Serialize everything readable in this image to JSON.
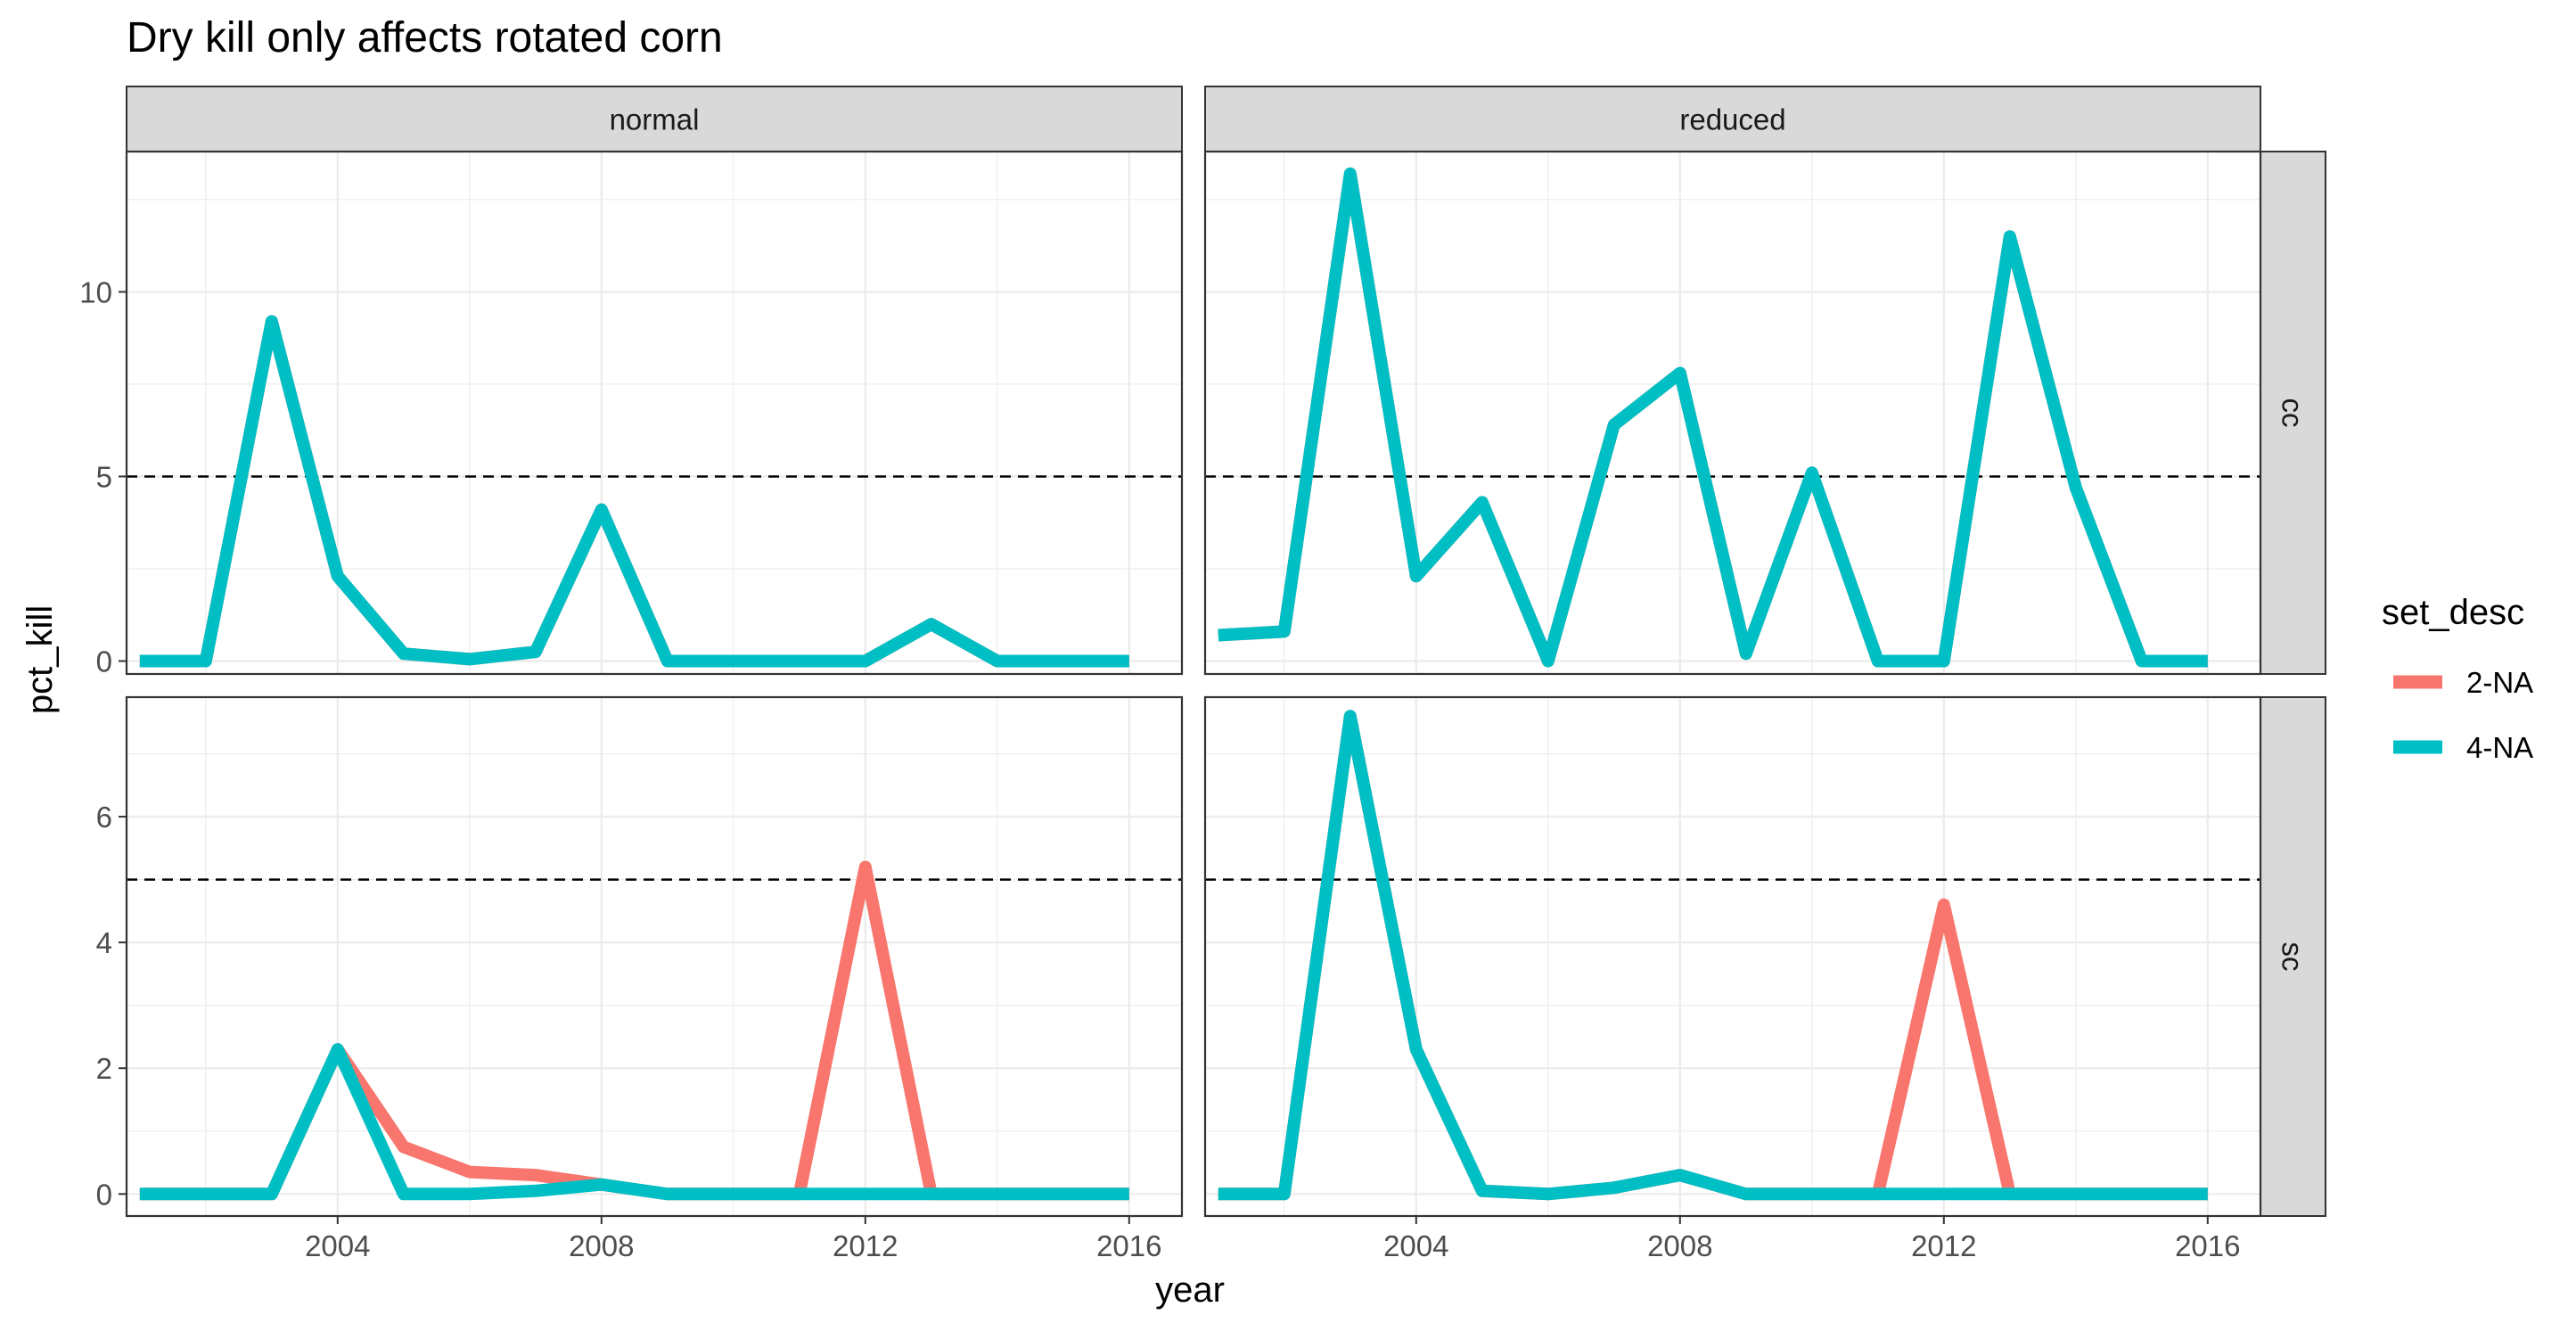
{
  "chart_data": {
    "type": "line",
    "title": "Dry kill only affects rotated corn",
    "xlabel": "year",
    "ylabel": "pct_kill",
    "x_ticks": [
      2004,
      2008,
      2012,
      2016
    ],
    "xlim": [
      2000.8,
      2016.8
    ],
    "reference_line": {
      "y": 5,
      "style": "dashed",
      "color": "#000000"
    },
    "facet_columns": [
      "normal",
      "reduced"
    ],
    "facet_rows": [
      "cc",
      "sc"
    ],
    "legend": {
      "title": "set_desc",
      "placement": "right",
      "entries": [
        {
          "name": "2-NA",
          "color": "#F8766D"
        },
        {
          "name": "4-NA",
          "color": "#00BFC4"
        }
      ]
    },
    "rows": [
      {
        "name": "cc",
        "ylim": [
          -0.35,
          13.8
        ],
        "y_ticks": [
          0,
          5,
          10
        ]
      },
      {
        "name": "sc",
        "ylim": [
          -0.35,
          7.9
        ],
        "y_ticks": [
          0,
          2,
          4,
          6
        ]
      }
    ],
    "panels": [
      {
        "column": "normal",
        "row": "cc",
        "series": [
          {
            "name": "2-NA",
            "x": [
              2001,
              2002,
              2003,
              2004,
              2005,
              2006,
              2007,
              2008,
              2009,
              2010,
              2011,
              2012,
              2013,
              2014,
              2015,
              2016
            ],
            "y": [
              0,
              0,
              9.2,
              2.3,
              0.2,
              0.05,
              0.25,
              4.1,
              0,
              0,
              0,
              0,
              1.0,
              0,
              0,
              0
            ]
          },
          {
            "name": "4-NA",
            "x": [
              2001,
              2002,
              2003,
              2004,
              2005,
              2006,
              2007,
              2008,
              2009,
              2010,
              2011,
              2012,
              2013,
              2014,
              2015,
              2016
            ],
            "y": [
              0,
              0,
              9.2,
              2.3,
              0.2,
              0.05,
              0.25,
              4.1,
              0,
              0,
              0,
              0,
              1.0,
              0,
              0,
              0
            ]
          }
        ]
      },
      {
        "column": "reduced",
        "row": "cc",
        "series": [
          {
            "name": "2-NA",
            "x": [
              2001,
              2002,
              2003,
              2004,
              2005,
              2006,
              2007,
              2008,
              2009,
              2010,
              2011,
              2012,
              2013,
              2014,
              2015,
              2016
            ],
            "y": [
              0.7,
              0.8,
              13.2,
              2.3,
              4.3,
              0,
              6.4,
              7.8,
              0.2,
              5.1,
              0,
              0,
              11.5,
              4.7,
              0,
              0
            ]
          },
          {
            "name": "4-NA",
            "x": [
              2001,
              2002,
              2003,
              2004,
              2005,
              2006,
              2007,
              2008,
              2009,
              2010,
              2011,
              2012,
              2013,
              2014,
              2015,
              2016
            ],
            "y": [
              0.7,
              0.8,
              13.2,
              2.3,
              4.3,
              0,
              6.4,
              7.8,
              0.2,
              5.1,
              0,
              0,
              11.5,
              4.7,
              0,
              0
            ]
          }
        ]
      },
      {
        "column": "normal",
        "row": "sc",
        "series": [
          {
            "name": "2-NA",
            "x": [
              2001,
              2002,
              2003,
              2004,
              2005,
              2006,
              2007,
              2008,
              2009,
              2010,
              2011,
              2012,
              2013,
              2014,
              2015,
              2016
            ],
            "y": [
              0,
              0,
              0,
              2.3,
              0.75,
              0.35,
              0.3,
              0.15,
              0,
              0,
              0,
              5.2,
              0,
              0,
              0,
              0
            ]
          },
          {
            "name": "4-NA",
            "x": [
              2001,
              2002,
              2003,
              2004,
              2005,
              2006,
              2007,
              2008,
              2009,
              2010,
              2011,
              2012,
              2013,
              2014,
              2015,
              2016
            ],
            "y": [
              0,
              0,
              0,
              2.3,
              0,
              0,
              0.05,
              0.15,
              0,
              0,
              0,
              0,
              0,
              0,
              0,
              0
            ]
          }
        ]
      },
      {
        "column": "reduced",
        "row": "sc",
        "series": [
          {
            "name": "2-NA",
            "x": [
              2001,
              2002,
              2003,
              2004,
              2005,
              2006,
              2007,
              2008,
              2009,
              2010,
              2011,
              2012,
              2013,
              2014,
              2015,
              2016
            ],
            "y": [
              0,
              0,
              7.6,
              2.3,
              0.05,
              0,
              0.1,
              0.3,
              0,
              0,
              0,
              4.6,
              0,
              0,
              0,
              0
            ]
          },
          {
            "name": "4-NA",
            "x": [
              2001,
              2002,
              2003,
              2004,
              2005,
              2006,
              2007,
              2008,
              2009,
              2010,
              2011,
              2012,
              2013,
              2014,
              2015,
              2016
            ],
            "y": [
              0,
              0,
              7.6,
              2.3,
              0.05,
              0,
              0.1,
              0.3,
              0,
              0,
              0,
              0,
              0,
              0,
              0,
              0
            ]
          }
        ]
      }
    ]
  }
}
